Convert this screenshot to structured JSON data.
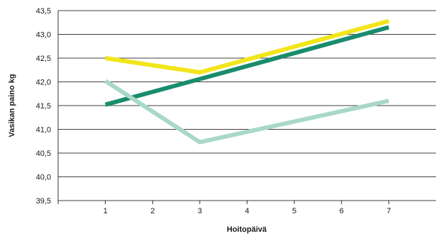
{
  "chart_data": {
    "type": "line",
    "title": "",
    "xlabel": "Hoitopäivä",
    "ylabel": "Vasikan paino kg",
    "categories": [
      "1",
      "2",
      "3",
      "4",
      "5",
      "6",
      "7"
    ],
    "x": [
      1,
      2,
      3,
      4,
      5,
      6,
      7
    ],
    "xlim": [
      0,
      8
    ],
    "ylim": [
      39.5,
      43.5
    ],
    "yticks": [
      39.5,
      40.0,
      40.5,
      41.0,
      41.5,
      42.0,
      42.5,
      43.0,
      43.5
    ],
    "ytick_labels": [
      "39,5",
      "40,0",
      "40,5",
      "41,0",
      "41,5",
      "42,0",
      "42,5",
      "43,0",
      "43,5"
    ],
    "grid": "horizontal",
    "legend": "none",
    "series": [
      {
        "color": "#f2e51a",
        "values": [
          42.5,
          null,
          42.2,
          null,
          null,
          null,
          43.28
        ]
      },
      {
        "color": "#1a8c6e",
        "values": [
          41.52,
          null,
          42.06,
          null,
          null,
          null,
          43.15
        ]
      },
      {
        "color": "#a8d8c8",
        "values": [
          42.02,
          null,
          40.73,
          null,
          null,
          null,
          41.6
        ]
      }
    ]
  }
}
